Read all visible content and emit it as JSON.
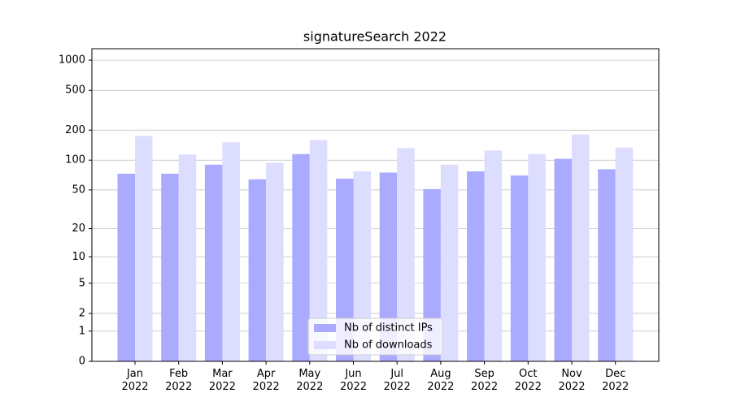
{
  "chart_data": {
    "type": "bar",
    "title": "signatureSearch 2022",
    "categories": [
      "Jan 2022",
      "Feb 2022",
      "Mar 2022",
      "Apr 2022",
      "May 2022",
      "Jun 2022",
      "Jul 2022",
      "Aug 2022",
      "Sep 2022",
      "Oct 2022",
      "Nov 2022",
      "Dec 2022"
    ],
    "series": [
      {
        "name": "Nb of distinct IPs",
        "color": "#aaaaff",
        "values": [
          73,
          73,
          90,
          64,
          115,
          65,
          75,
          51,
          77,
          70,
          103,
          81
        ]
      },
      {
        "name": "Nb of downloads",
        "color": "#ddddff",
        "values": [
          175,
          114,
          151,
          94,
          159,
          77,
          132,
          90,
          125,
          115,
          181,
          134
        ]
      }
    ],
    "yscale": "log1p",
    "ylim": [
      0,
      1300
    ],
    "yticks": [
      0,
      1,
      2,
      5,
      10,
      20,
      50,
      100,
      200,
      500,
      1000
    ],
    "grid": true,
    "legend": "lower center"
  }
}
